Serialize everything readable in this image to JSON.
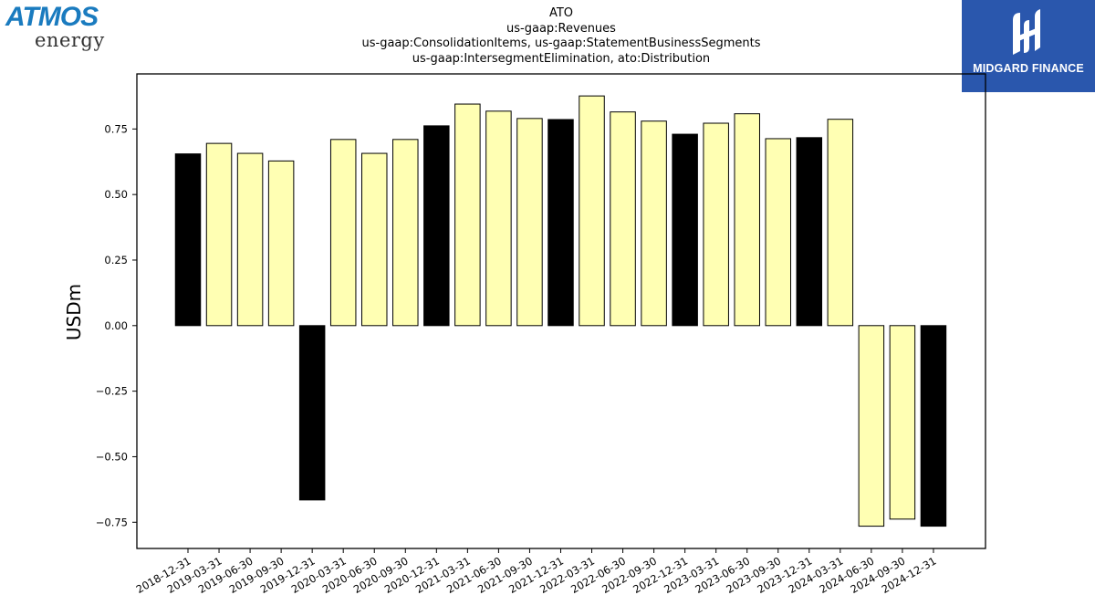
{
  "logos": {
    "left": {
      "brand": "ATMOS",
      "sub": "energy",
      "icon": "atmos-energy-logo"
    },
    "right": {
      "name": "MIDGARD FINANCE",
      "icon": "midgard-finance-logo"
    }
  },
  "chart_data": {
    "type": "bar",
    "title_lines": [
      "ATO",
      "us-gaap:Revenues",
      "us-gaap:ConsolidationItems, us-gaap:StatementBusinessSegments",
      "us-gaap:IntersegmentElimination, ato:Distribution"
    ],
    "xlabel": "",
    "ylabel": "USDm",
    "ylim": [
      -0.85,
      0.96
    ],
    "yticks": [
      -0.75,
      -0.5,
      -0.25,
      0.0,
      0.25,
      0.5,
      0.75
    ],
    "ytick_labels": [
      "−0.75",
      "−0.50",
      "−0.25",
      "0.00",
      "0.25",
      "0.50",
      "0.75"
    ],
    "grid": false,
    "categories": [
      "2018-12-31",
      "2019-03-31",
      "2019-06-30",
      "2019-09-30",
      "2019-12-31",
      "2020-03-31",
      "2020-06-30",
      "2020-09-30",
      "2020-12-31",
      "2021-03-31",
      "2021-06-30",
      "2021-09-30",
      "2021-12-31",
      "2022-03-31",
      "2022-06-30",
      "2022-09-30",
      "2022-12-31",
      "2023-03-31",
      "2023-06-30",
      "2023-09-30",
      "2023-12-31",
      "2024-03-31",
      "2024-06-30",
      "2024-09-30",
      "2024-12-31"
    ],
    "values": [
      0.655,
      0.695,
      0.657,
      0.628,
      -0.665,
      0.71,
      0.657,
      0.71,
      0.762,
      0.845,
      0.818,
      0.79,
      0.786,
      0.876,
      0.815,
      0.78,
      0.73,
      0.772,
      0.808,
      0.713,
      0.717,
      0.787,
      -0.765,
      -0.738,
      -0.765
    ],
    "highlight": [
      true,
      false,
      false,
      false,
      true,
      false,
      false,
      false,
      true,
      false,
      false,
      false,
      true,
      false,
      false,
      false,
      true,
      false,
      false,
      false,
      true,
      false,
      false,
      false,
      true
    ],
    "colors": {
      "highlight": "#000000",
      "normal": "#ffffb3",
      "edge": "#000000"
    }
  }
}
